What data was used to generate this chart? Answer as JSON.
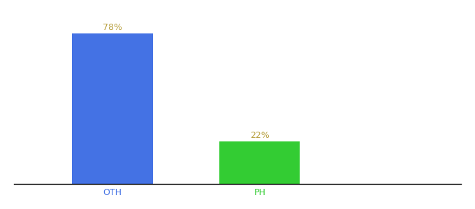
{
  "categories": [
    "OTH",
    "PH"
  ],
  "values": [
    78,
    22
  ],
  "bar_colors": [
    "#4472e4",
    "#33cc33"
  ],
  "label_texts": [
    "78%",
    "22%"
  ],
  "label_color": "#b8a040",
  "label_fontsize": 9,
  "tick_label_colors": [
    "#4472e4",
    "#33cc33"
  ],
  "tick_fontsize": 9,
  "background_color": "#ffffff",
  "ylim": [
    0,
    90
  ],
  "bar_width": 0.18,
  "x_positions": [
    0.22,
    0.55
  ],
  "xlim": [
    0.0,
    1.0
  ],
  "figsize": [
    6.8,
    3.0
  ],
  "dpi": 100
}
